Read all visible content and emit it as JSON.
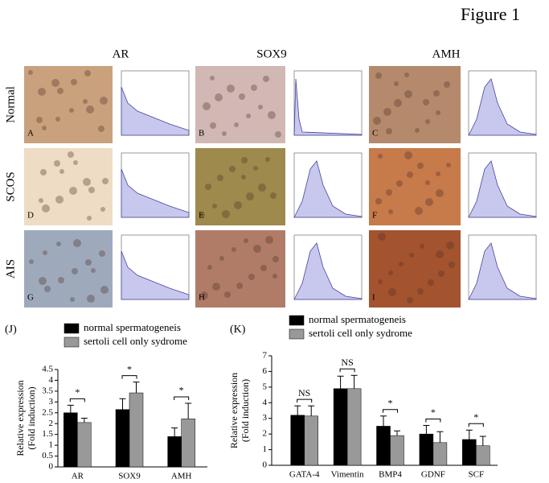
{
  "figure_title": "Figure 1",
  "columns": [
    "AR",
    "SOX9",
    "AMH"
  ],
  "rows": [
    "Normal",
    "SCOS",
    "AIS"
  ],
  "panels": [
    "A",
    "B",
    "C",
    "D",
    "E",
    "F",
    "G",
    "H",
    "I"
  ],
  "chart_data": [
    {
      "type": "bar",
      "panel": "(J)",
      "ylabel": [
        "Relative  expression",
        "(Fold induction)"
      ],
      "categories": [
        "AR",
        "SOX9",
        "AMH"
      ],
      "series": [
        {
          "name": "normal spermatogeneis",
          "color": "#000000",
          "values": [
            2.5,
            2.65,
            1.4
          ],
          "errors": [
            0.35,
            0.5,
            0.4
          ]
        },
        {
          "name": "sertoli cell only sydrome",
          "color": "#999999",
          "values": [
            2.05,
            3.42,
            2.22
          ],
          "errors": [
            0.2,
            0.5,
            0.72
          ]
        }
      ],
      "annotations": [
        "*",
        "*",
        "*"
      ],
      "ylim": [
        0,
        4.5
      ],
      "yticks": [
        0,
        0.5,
        1,
        1.5,
        2,
        2.5,
        3,
        3.5,
        4,
        4.5
      ]
    },
    {
      "type": "bar",
      "panel": "(K)",
      "ylabel": [
        "Relative  expression",
        "(Fold induction)"
      ],
      "categories": [
        "GATA-4",
        "Vimentin",
        "BMP4",
        "GDNF",
        "SCF"
      ],
      "series": [
        {
          "name": "normal spermatogeneis",
          "color": "#000000",
          "values": [
            3.2,
            4.9,
            2.5,
            2.0,
            1.65
          ],
          "errors": [
            0.6,
            0.8,
            0.65,
            0.55,
            0.6
          ]
        },
        {
          "name": "sertoli cell only sydrome",
          "color": "#999999",
          "values": [
            3.15,
            4.9,
            1.9,
            1.45,
            1.25
          ],
          "errors": [
            0.65,
            0.85,
            0.3,
            0.7,
            0.6
          ]
        }
      ],
      "annotations": [
        "NS",
        "NS",
        "*",
        "*",
        "*"
      ],
      "ylim": [
        0,
        7
      ],
      "yticks": [
        0,
        1,
        2,
        3,
        4,
        5,
        6,
        7
      ]
    }
  ]
}
